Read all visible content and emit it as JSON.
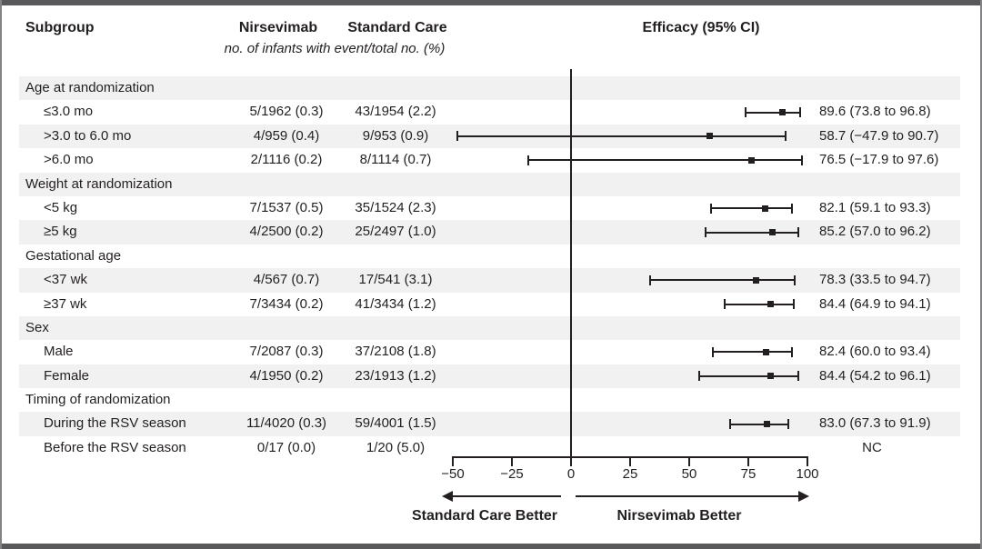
{
  "figure": {
    "header": {
      "subgroup": "Subgroup",
      "col_nirsevimab": "Nirsevimab",
      "col_standard_care": "Standard Care",
      "col_subtitle": "no. of infants with event/total no. (%)",
      "col_efficacy": "Efficacy (95% CI)"
    },
    "colors": {
      "band": "#f1f1f2",
      "frame_bar": "#59595c",
      "ink": "#231f20"
    }
  },
  "chart_data": {
    "type": "forest",
    "title": "Efficacy (95% CI)",
    "x_axis": {
      "min": -50,
      "max": 100,
      "ticks": [
        -50,
        -25,
        0,
        25,
        50,
        75,
        100
      ],
      "tick_labels": [
        "−50",
        "−25",
        "0",
        "25",
        "50",
        "75",
        "100"
      ],
      "reference_line": 0
    },
    "direction_labels": {
      "left": "Standard Care Better",
      "right": "Nirsevimab Better"
    },
    "rows": [
      {
        "label": "Age at randomization",
        "category": true
      },
      {
        "label": "≤3.0 mo",
        "nirsevimab": "5/1962 (0.3)",
        "standard_care": "43/1954 (2.2)",
        "efficacy": "89.6 (73.8 to 96.8)",
        "est": 89.6,
        "lo": 73.8,
        "hi": 96.8
      },
      {
        "label": ">3.0 to 6.0 mo",
        "nirsevimab": "4/959 (0.4)",
        "standard_care": "9/953 (0.9)",
        "efficacy": "58.7 (−47.9 to 90.7)",
        "est": 58.7,
        "lo": -47.9,
        "hi": 90.7
      },
      {
        "label": ">6.0 mo",
        "nirsevimab": "2/1116 (0.2)",
        "standard_care": "8/1114 (0.7)",
        "efficacy": "76.5 (−17.9 to 97.6)",
        "est": 76.5,
        "lo": -17.9,
        "hi": 97.6
      },
      {
        "label": "Weight at randomization",
        "category": true
      },
      {
        "label": "<5 kg",
        "nirsevimab": "7/1537 (0.5)",
        "standard_care": "35/1524 (2.3)",
        "efficacy": "82.1 (59.1 to 93.3)",
        "est": 82.1,
        "lo": 59.1,
        "hi": 93.3
      },
      {
        "label": "≥5 kg",
        "nirsevimab": "4/2500 (0.2)",
        "standard_care": "25/2497 (1.0)",
        "efficacy": "85.2 (57.0 to 96.2)",
        "est": 85.2,
        "lo": 57.0,
        "hi": 96.2
      },
      {
        "label": "Gestational age",
        "category": true
      },
      {
        "label": "<37 wk",
        "nirsevimab": "4/567 (0.7)",
        "standard_care": "17/541 (3.1)",
        "efficacy": "78.3 (33.5 to 94.7)",
        "est": 78.3,
        "lo": 33.5,
        "hi": 94.7
      },
      {
        "label": "≥37 wk",
        "nirsevimab": "7/3434 (0.2)",
        "standard_care": "41/3434 (1.2)",
        "efficacy": "84.4 (64.9 to 94.1)",
        "est": 84.4,
        "lo": 64.9,
        "hi": 94.1
      },
      {
        "label": "Sex",
        "category": true
      },
      {
        "label": "Male",
        "nirsevimab": "7/2087 (0.3)",
        "standard_care": "37/2108 (1.8)",
        "efficacy": "82.4 (60.0 to 93.4)",
        "est": 82.4,
        "lo": 60.0,
        "hi": 93.4
      },
      {
        "label": "Female",
        "nirsevimab": "4/1950 (0.2)",
        "standard_care": "23/1913 (1.2)",
        "efficacy": "84.4 (54.2 to 96.1)",
        "est": 84.4,
        "lo": 54.2,
        "hi": 96.1
      },
      {
        "label": "Timing of randomization",
        "category": true
      },
      {
        "label": "During the RSV season",
        "nirsevimab": "11/4020 (0.3)",
        "standard_care": "59/4001 (1.5)",
        "efficacy": "83.0 (67.3 to 91.9)",
        "est": 83.0,
        "lo": 67.3,
        "hi": 91.9
      },
      {
        "label": "Before the RSV season",
        "nirsevimab": "0/17 (0.0)",
        "standard_care": "1/20 (5.0)",
        "efficacy": "NC",
        "est": null,
        "lo": null,
        "hi": null
      }
    ]
  }
}
